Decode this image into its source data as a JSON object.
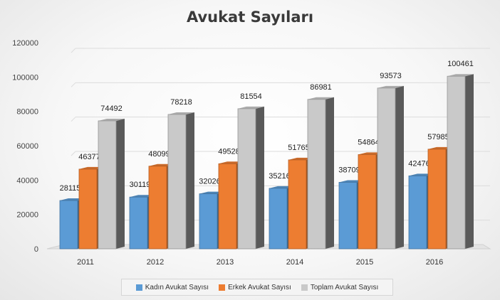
{
  "chart_data": {
    "type": "bar",
    "title": "Avukat Sayıları",
    "categories": [
      "2011",
      "2012",
      "2013",
      "2014",
      "2015",
      "2016"
    ],
    "series": [
      {
        "name": "Kadın Avukat Sayısı",
        "color": "#5b9bd5",
        "values": [
          28115,
          30119,
          32026,
          35216,
          38709,
          42476
        ]
      },
      {
        "name": "Erkek Avukat Sayısı",
        "color": "#ed7d31",
        "values": [
          46377,
          48099,
          49528,
          51765,
          54864,
          57985
        ]
      },
      {
        "name": "Toplam Avukat Sayısı",
        "color": "#c9c9c9",
        "values": [
          74492,
          78218,
          81554,
          86981,
          93573,
          100461
        ]
      }
    ],
    "yticks": [
      "0",
      "20000",
      "40000",
      "60000",
      "80000",
      "100000",
      "120000"
    ],
    "ylim": [
      0,
      120000
    ],
    "legend_position": "bottom",
    "grid": true
  }
}
